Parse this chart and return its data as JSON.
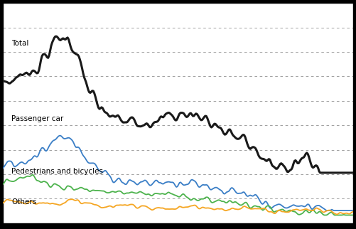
{
  "background_color": "#000000",
  "plot_bg_color": "#ffffff",
  "grid_color": "#999999",
  "grid_linestyle": "--",
  "series": {
    "Total": {
      "color": "#1a1a1a",
      "linewidth": 2.2
    },
    "Passenger car": {
      "color": "#3a7ec6",
      "linewidth": 1.3
    },
    "Pedestrians and bicycles": {
      "color": "#4db34d",
      "linewidth": 1.3
    },
    "Others": {
      "color": "#f5a623",
      "linewidth": 1.3
    }
  },
  "ylim": [
    0,
    1050
  ],
  "n_points": 342,
  "label_fontsize": 7.5,
  "n_gridlines": 8,
  "n_xticks": 29
}
